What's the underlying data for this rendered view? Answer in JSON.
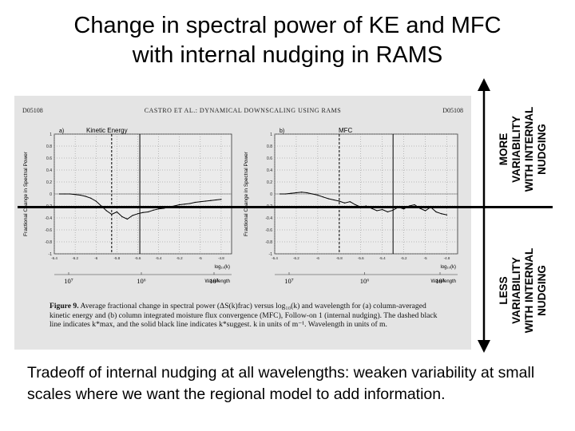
{
  "slide": {
    "title_line1": "Change in spectral power of KE and MFC",
    "title_line2": "with internal nudging in RAMS",
    "more_label": [
      "MORE",
      "VARIABILITY",
      "WITH INTERNAL",
      "NUDGING"
    ],
    "less_label": [
      "LESS",
      "VARIABILITY",
      "WITH INTERNAL",
      "NUDGING"
    ],
    "bottom_text": "Tradeoff of internal nudging at all wavelengths: weaken variability at small scales where we want the regional model to add information."
  },
  "figure": {
    "header_left": "D05108",
    "header_center": "CASTRO ET AL.: DYNAMICAL DOWNSCALING USING RAMS",
    "header_right": "D05108",
    "panel_a": {
      "letter": "a)",
      "title": "Kinetic Energy",
      "ylabel": "Fractional Change in Spectral Power",
      "xlabel": "log₁₀(k)",
      "wavelength_label": "Wavelength",
      "wl_ticks": [
        "10⁷",
        "10⁶",
        "10⁵"
      ]
    },
    "panel_b": {
      "letter": "b)",
      "title": "MFC",
      "ylabel": "Fractional Change in Spectral Power",
      "xlabel": "log₁₀(k)",
      "wavelength_label": "Wavelength",
      "wl_ticks": [
        "10⁷",
        "10⁶",
        "10⁵"
      ]
    },
    "caption_bold": "Figure 9.",
    "caption_text": "Average fractional change in spectral power (ΔS(k)frac) versus log₁₀(k) and wavelength for (a) column-averaged kinetic energy and (b) column integrated moisture flux convergence (MFC), Follow-on 1 (internal nudging). The dashed black line indicates k*max, and the solid black line indicates k*suggest. k in units of m⁻¹. Wavelength in units of m."
  },
  "chart_data": [
    {
      "type": "line",
      "title": "Kinetic Energy",
      "xlabel": "log₁₀(k)",
      "ylabel": "Fractional Change in Spectral Power",
      "xlim": [
        -6.4,
        -4.7
      ],
      "ylim": [
        -1,
        1
      ],
      "y_ticks": [
        1,
        0.8,
        0.6,
        0.4,
        0.2,
        0,
        -0.2,
        -0.4,
        -0.6,
        -0.8,
        -1
      ],
      "x_ticks": [
        -6.4,
        -6.2,
        -6.0,
        -5.8,
        -5.6,
        -5.4,
        -5.2,
        -5.0,
        -4.8
      ],
      "x": [
        -6.35,
        -6.3,
        -6.25,
        -6.2,
        -6.15,
        -6.1,
        -6.05,
        -6.0,
        -5.95,
        -5.9,
        -5.85,
        -5.8,
        -5.75,
        -5.7,
        -5.65,
        -5.6,
        -5.55,
        -5.5,
        -5.45,
        -5.4,
        -5.35,
        -5.3,
        -5.25,
        -5.2,
        -5.15,
        -5.1,
        -5.05,
        -5.0,
        -4.95,
        -4.9,
        -4.85,
        -4.8
      ],
      "y": [
        0.0,
        0.0,
        0.0,
        -0.01,
        -0.02,
        -0.04,
        -0.07,
        -0.12,
        -0.2,
        -0.28,
        -0.34,
        -0.3,
        -0.38,
        -0.42,
        -0.36,
        -0.33,
        -0.31,
        -0.3,
        -0.27,
        -0.25,
        -0.24,
        -0.22,
        -0.2,
        -0.18,
        -0.17,
        -0.16,
        -0.14,
        -0.13,
        -0.12,
        -0.11,
        -0.1,
        -0.09
      ],
      "vlines": [
        -5.85,
        -5.58
      ]
    },
    {
      "type": "line",
      "title": "MFC",
      "xlabel": "log₁₀(k)",
      "ylabel": "Fractional Change in Spectral Power",
      "xlim": [
        -6.4,
        -4.7
      ],
      "ylim": [
        -1,
        1
      ],
      "y_ticks": [
        1,
        0.8,
        0.6,
        0.4,
        0.2,
        0,
        -0.2,
        -0.4,
        -0.6,
        -0.8,
        -1
      ],
      "x_ticks": [
        -6.4,
        -6.2,
        -6.0,
        -5.8,
        -5.6,
        -5.4,
        -5.2,
        -5.0,
        -4.8
      ],
      "x": [
        -6.35,
        -6.3,
        -6.25,
        -6.2,
        -6.15,
        -6.1,
        -6.05,
        -6.0,
        -5.95,
        -5.9,
        -5.85,
        -5.8,
        -5.75,
        -5.7,
        -5.65,
        -5.6,
        -5.55,
        -5.5,
        -5.45,
        -5.4,
        -5.35,
        -5.3,
        -5.25,
        -5.2,
        -5.15,
        -5.1,
        -5.05,
        -5.0,
        -4.95,
        -4.9,
        -4.85,
        -4.8
      ],
      "y": [
        0.0,
        0.0,
        0.01,
        0.02,
        0.03,
        0.02,
        0.0,
        -0.02,
        -0.05,
        -0.08,
        -0.1,
        -0.12,
        -0.15,
        -0.13,
        -0.18,
        -0.22,
        -0.2,
        -0.24,
        -0.28,
        -0.26,
        -0.3,
        -0.27,
        -0.22,
        -0.25,
        -0.2,
        -0.18,
        -0.24,
        -0.28,
        -0.22,
        -0.3,
        -0.33,
        -0.35
      ],
      "vlines": [
        -5.8,
        -5.3
      ]
    }
  ]
}
